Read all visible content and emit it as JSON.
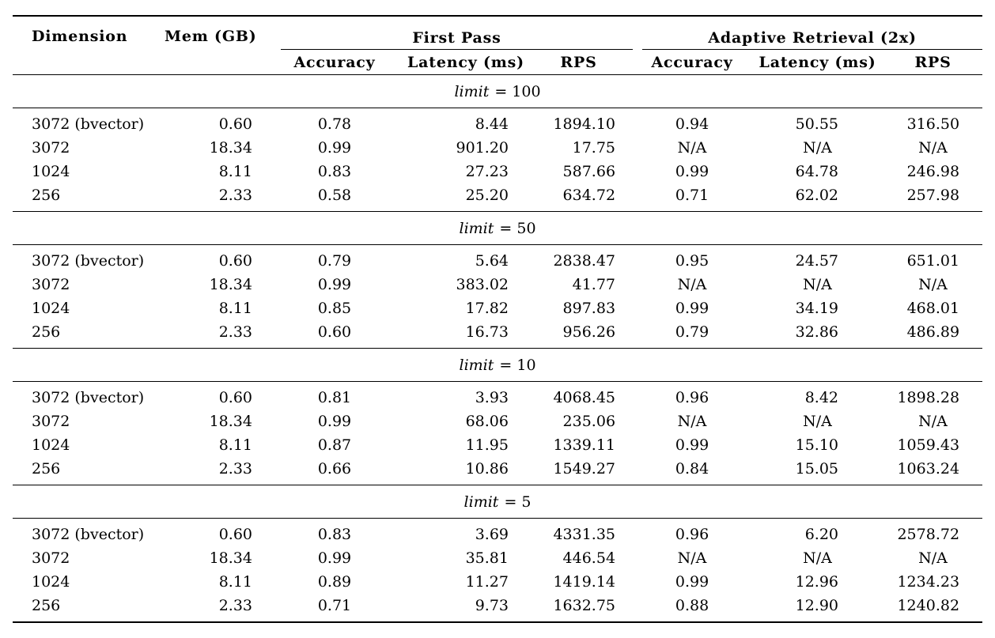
{
  "table": {
    "headers": {
      "dimension": "Dimension",
      "mem": "Mem (GB)",
      "group1": "First Pass",
      "group2": "Adaptive Retrieval (2x)",
      "sub": [
        "Accuracy",
        "Latency (ms)",
        "RPS",
        "Accuracy",
        "Latency (ms)",
        "RPS"
      ]
    },
    "sections": [
      {
        "title_parts": [
          "limit",
          "= 100"
        ],
        "rows": [
          [
            "3072 (bvector)",
            "0.60",
            "0.78",
            "8.44",
            "1894.10",
            "0.94",
            "50.55",
            "316.50"
          ],
          [
            "3072",
            "18.34",
            "0.99",
            "901.20",
            "17.75",
            "N/A",
            "N/A",
            "N/A"
          ],
          [
            "1024",
            "8.11",
            "0.83",
            "27.23",
            "587.66",
            "0.99",
            "64.78",
            "246.98"
          ],
          [
            "256",
            "2.33",
            "0.58",
            "25.20",
            "634.72",
            "0.71",
            "62.02",
            "257.98"
          ]
        ]
      },
      {
        "title_parts": [
          "limit",
          "= 50"
        ],
        "rows": [
          [
            "3072 (bvector)",
            "0.60",
            "0.79",
            "5.64",
            "2838.47",
            "0.95",
            "24.57",
            "651.01"
          ],
          [
            "3072",
            "18.34",
            "0.99",
            "383.02",
            "41.77",
            "N/A",
            "N/A",
            "N/A"
          ],
          [
            "1024",
            "8.11",
            "0.85",
            "17.82",
            "897.83",
            "0.99",
            "34.19",
            "468.01"
          ],
          [
            "256",
            "2.33",
            "0.60",
            "16.73",
            "956.26",
            "0.79",
            "32.86",
            "486.89"
          ]
        ]
      },
      {
        "title_parts": [
          "limit",
          "= 10"
        ],
        "rows": [
          [
            "3072 (bvector)",
            "0.60",
            "0.81",
            "3.93",
            "4068.45",
            "0.96",
            "8.42",
            "1898.28"
          ],
          [
            "3072",
            "18.34",
            "0.99",
            "68.06",
            "235.06",
            "N/A",
            "N/A",
            "N/A"
          ],
          [
            "1024",
            "8.11",
            "0.87",
            "11.95",
            "1339.11",
            "0.99",
            "15.10",
            "1059.43"
          ],
          [
            "256",
            "2.33",
            "0.66",
            "10.86",
            "1549.27",
            "0.84",
            "15.05",
            "1063.24"
          ]
        ]
      },
      {
        "title_parts": [
          "limit",
          "= 5"
        ],
        "rows": [
          [
            "3072 (bvector)",
            "0.60",
            "0.83",
            "3.69",
            "4331.35",
            "0.96",
            "6.20",
            "2578.72"
          ],
          [
            "3072",
            "18.34",
            "0.99",
            "35.81",
            "446.54",
            "N/A",
            "N/A",
            "N/A"
          ],
          [
            "1024",
            "8.11",
            "0.89",
            "11.27",
            "1419.14",
            "0.99",
            "12.96",
            "1234.23"
          ],
          [
            "256",
            "2.33",
            "0.71",
            "9.73",
            "1632.75",
            "0.88",
            "12.90",
            "1240.82"
          ]
        ]
      }
    ]
  }
}
